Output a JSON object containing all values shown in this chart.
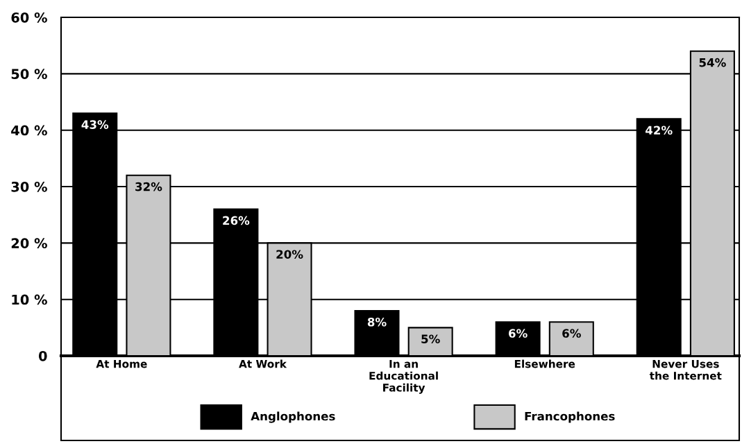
{
  "chart_data": {
    "type": "bar",
    "categories": [
      "At Home",
      "At Work",
      "In an\nEducational\nFacility",
      "Elsewhere",
      "Never Uses\nthe Internet"
    ],
    "series": [
      {
        "name": "Anglophones",
        "color": "#000000",
        "values": [
          43,
          26,
          8,
          6,
          42
        ],
        "value_labels": [
          "43%",
          "26%",
          "8%",
          "6%",
          "42%"
        ]
      },
      {
        "name": "Francophones",
        "color": "#c8c8c8",
        "values": [
          32,
          20,
          5,
          6,
          54
        ],
        "value_labels": [
          "32%",
          "20%",
          "5%",
          "6%",
          "54%"
        ]
      }
    ],
    "ylim": [
      0,
      60
    ],
    "yticks": [
      {
        "value": 0,
        "label": "0"
      },
      {
        "value": 10,
        "label": "10 %"
      },
      {
        "value": 20,
        "label": "20 %"
      },
      {
        "value": 30,
        "label": "30 %"
      },
      {
        "value": 40,
        "label": "40 %"
      },
      {
        "value": 50,
        "label": "50 %"
      },
      {
        "value": 60,
        "label": "60 %"
      }
    ],
    "grid": "y",
    "legend": "bottom"
  }
}
